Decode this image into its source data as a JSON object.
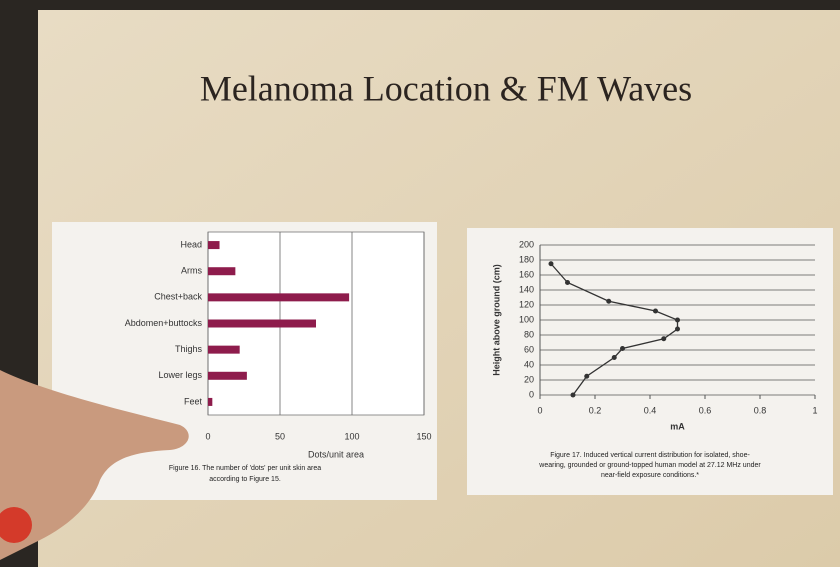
{
  "title": "Melanoma Location & FM Waves",
  "chart_data": [
    {
      "type": "hbar",
      "categories": [
        "Head",
        "Arms",
        "Chest+back",
        "Abdomen+buttocks",
        "Thighs",
        "Lower legs",
        "Feet"
      ],
      "values": [
        8,
        19,
        98,
        75,
        22,
        27,
        3
      ],
      "color": "#8e1c4c",
      "xlim": [
        0,
        150
      ],
      "xticks": [
        0,
        50,
        100,
        150
      ],
      "grid": true,
      "xlabel": "Dots/unit area",
      "caption": [
        "Figure 16. The number of 'dots' per unit skin area",
        "according to Figure 15."
      ]
    },
    {
      "type": "line",
      "x": [
        0.12,
        0.17,
        0.27,
        0.3,
        0.45,
        0.5,
        0.5,
        0.42,
        0.25,
        0.1,
        0.04
      ],
      "values": [
        0,
        25,
        50,
        62,
        75,
        88,
        100,
        112,
        125,
        150,
        175
      ],
      "color": "#333333",
      "xlim": [
        0,
        1
      ],
      "xticks": [
        0,
        0.2,
        0.4,
        0.6,
        0.8,
        1
      ],
      "ylim": [
        0,
        200
      ],
      "yticks": [
        0,
        20,
        40,
        60,
        80,
        100,
        120,
        140,
        160,
        180,
        200
      ],
      "grid": true,
      "xlabel": "mA",
      "ylabel": "Height above ground (cm)",
      "caption": [
        "Figure 17. Induced vertical current distribution for isolated, shoe-",
        "wearing, grounded or ground-topped human model at 27.12 MHz under",
        "near-field exposure conditions.*"
      ]
    }
  ]
}
